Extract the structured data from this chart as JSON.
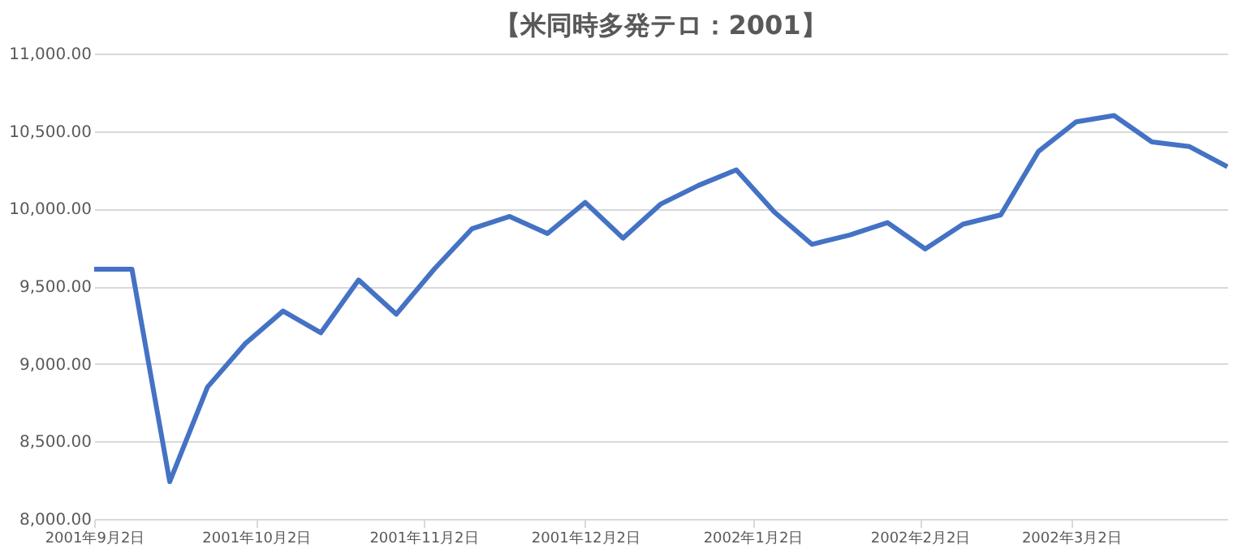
{
  "chart_data": {
    "type": "line",
    "title": "【米同時多発テロ：2001】",
    "x": [
      "2001-09-02",
      "2001-09-09",
      "2001-09-16",
      "2001-09-23",
      "2001-09-30",
      "2001-10-07",
      "2001-10-14",
      "2001-10-21",
      "2001-10-28",
      "2001-11-04",
      "2001-11-11",
      "2001-11-18",
      "2001-11-25",
      "2001-12-02",
      "2001-12-09",
      "2001-12-16",
      "2001-12-23",
      "2001-12-30",
      "2002-01-06",
      "2002-01-13",
      "2002-01-20",
      "2002-01-27",
      "2002-02-03",
      "2002-02-10",
      "2002-02-17",
      "2002-02-24",
      "2002-03-03",
      "2002-03-10",
      "2002-03-17",
      "2002-03-24",
      "2002-03-31"
    ],
    "series": [
      {
        "color": "#4472c4",
        "values": [
          9610,
          9610,
          8240,
          8850,
          9130,
          9340,
          9200,
          9540,
          9320,
          9610,
          9870,
          9950,
          9840,
          10040,
          9810,
          10030,
          10150,
          10250,
          9980,
          9770,
          9830,
          9910,
          9740,
          9900,
          9960,
          10370,
          10560,
          10600,
          10430,
          10400,
          10270
        ]
      }
    ],
    "xlim": [
      "2001-09-02",
      "2002-03-31"
    ],
    "xticks": [
      {
        "value": "2001-09-02",
        "label": "2001年9月2日"
      },
      {
        "value": "2001-10-02",
        "label": "2001年10月2日"
      },
      {
        "value": "2001-11-02",
        "label": "2001年11月2日"
      },
      {
        "value": "2001-12-02",
        "label": "2001年12月2日"
      },
      {
        "value": "2002-01-02",
        "label": "2002年1月2日"
      },
      {
        "value": "2002-02-02",
        "label": "2002年2月2日"
      },
      {
        "value": "2002-03-02",
        "label": "2002年3月2日"
      }
    ],
    "ylim": [
      8000,
      11000
    ],
    "yticks": [
      {
        "value": 8000,
        "label": "8,000.00"
      },
      {
        "value": 8500,
        "label": "8,500.00"
      },
      {
        "value": 9000,
        "label": "9,000.00"
      },
      {
        "value": 9500,
        "label": "9,500.00"
      },
      {
        "value": 10000,
        "label": "10,000.00"
      },
      {
        "value": 10500,
        "label": "10,500.00"
      },
      {
        "value": 11000,
        "label": "11,000.00"
      }
    ],
    "grid": "y",
    "marker": "none",
    "line_style": "solid"
  }
}
